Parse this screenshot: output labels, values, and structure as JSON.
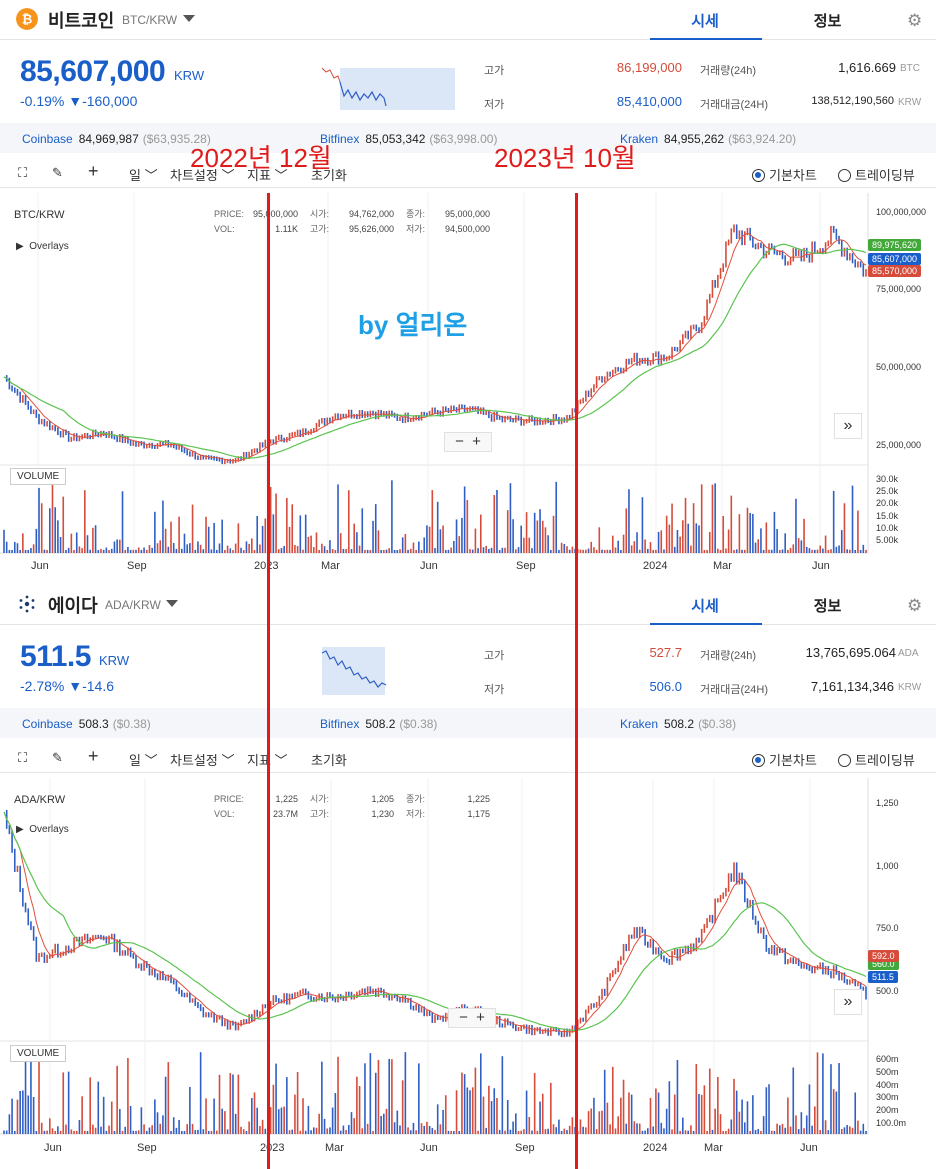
{
  "btc": {
    "name": "비트코인",
    "pair": "BTC/KRW",
    "tab_active": "시세",
    "tab_info": "정보",
    "price": "85,607,000",
    "unit": "KRW",
    "change": "-0.19% ▼-160,000",
    "high_label": "고가",
    "high_value": "86,199,000",
    "low_label": "저가",
    "low_value": "85,410,000",
    "vol24_label": "거래량(24h)",
    "vol24_value": "1,616.669",
    "vol24_unit": "BTC",
    "amt24_label": "거래대금(24H)",
    "amt24_value": "138,512,190,560",
    "amt24_unit": "KRW",
    "exchanges": [
      {
        "name": "Coinbase",
        "value": "84,969,987",
        "usd": "($63,935.28)"
      },
      {
        "name": "Bitfinex",
        "value": "85,053,342",
        "usd": "($63,998.00)"
      },
      {
        "name": "Kraken",
        "value": "84,955,262",
        "usd": "($63,924.20)"
      }
    ],
    "chart_pair": "BTC/KRW",
    "overlays": "Overlays",
    "ohlc": {
      "price_k": "PRICE:",
      "price_v": "95,000,000",
      "vol_k": "VOL:",
      "vol_v": "1.11K",
      "open_k": "시가:",
      "open_v": "94,762,000",
      "high_k": "고가:",
      "high_v": "95,626,000",
      "close_k": "종가:",
      "close_v": "95,000,000",
      "low_k": "저가:",
      "low_v": "94,500,000"
    },
    "yticks": [
      "100,000,000",
      "75,000,000",
      "50,000,000",
      "25,000,000"
    ],
    "vol_ticks": [
      "30.0k",
      "25.0k",
      "20.0k",
      "15.0k",
      "10.0k",
      "5.00k"
    ],
    "tag_ma": "89,975,620",
    "tag_price": "85,607,000",
    "tag_red": "85,570,000"
  },
  "ada": {
    "name": "에이다",
    "pair": "ADA/KRW",
    "tab_active": "시세",
    "tab_info": "정보",
    "price": "511.5",
    "unit": "KRW",
    "change": "-2.78% ▼-14.6",
    "high_label": "고가",
    "high_value": "527.7",
    "low_label": "저가",
    "low_value": "506.0",
    "vol24_label": "거래량(24h)",
    "vol24_value": "13,765,695.064",
    "vol24_unit": "ADA",
    "amt24_label": "거래대금(24H)",
    "amt24_value": "7,161,134,346",
    "amt24_unit": "KRW",
    "exchanges": [
      {
        "name": "Coinbase",
        "value": "508.3",
        "usd": "($0.38)"
      },
      {
        "name": "Bitfinex",
        "value": "508.2",
        "usd": "($0.38)"
      },
      {
        "name": "Kraken",
        "value": "508.2",
        "usd": "($0.38)"
      }
    ],
    "chart_pair": "ADA/KRW",
    "overlays": "Overlays",
    "ohlc": {
      "price_k": "PRICE:",
      "price_v": "1,225",
      "vol_k": "VOL:",
      "vol_v": "23.7M",
      "open_k": "시가:",
      "open_v": "1,205",
      "high_k": "고가:",
      "high_v": "1,230",
      "close_k": "종가:",
      "close_v": "1,225",
      "low_k": "저가:",
      "low_v": "1,175"
    },
    "yticks": [
      "1,250",
      "1,000",
      "750.0",
      "500.0"
    ],
    "vol_ticks": [
      "600m",
      "500m",
      "400m",
      "300m",
      "200m",
      "100.0m"
    ],
    "tag_ma": "592.0",
    "tag_price": "511.5",
    "tag_green": "560.0"
  },
  "toolbar": {
    "period": "일",
    "chart_settings": "차트설정",
    "indicators": "지표",
    "reset": "초기화",
    "basic_chart": "기본차트",
    "tradingview": "트레이딩뷰"
  },
  "volume_label": "VOLUME",
  "x_ticks": [
    "Jun",
    "Sep",
    "2023",
    "Mar",
    "Jun",
    "Sep",
    "2024",
    "Mar",
    "Jun"
  ],
  "annotations": {
    "left": "2022년 12월",
    "right": "2023년 10월",
    "watermark": "by  얼리온"
  },
  "colors": {
    "accent": "#1a5ec9",
    "up": "#d64b3a",
    "down": "#2f5fc4",
    "ma_short": "#e0503c",
    "ma_long": "#5cc451",
    "annotation": "#e01b1b",
    "watermark": "#1e9fe6"
  },
  "icons": {
    "btc": "bitcoin-icon",
    "ada": "cardano-icon",
    "fullscreen": "fullscreen-icon",
    "draw": "pencil-icon",
    "crosshair": "crosshair-icon",
    "settings": "gear-icon"
  },
  "chart_data": [
    {
      "type": "line",
      "title": "BTC/KRW",
      "x": [
        "2022-05",
        "2022-06",
        "2022-07",
        "2022-08",
        "2022-09",
        "2022-10",
        "2022-11",
        "2022-12",
        "2023-01",
        "2023-02",
        "2023-03",
        "2023-04",
        "2023-05",
        "2023-06",
        "2023-07",
        "2023-08",
        "2023-09",
        "2023-10",
        "2023-11",
        "2023-12",
        "2024-01",
        "2024-02",
        "2024-03",
        "2024-04",
        "2024-05",
        "2024-06",
        "2024-07"
      ],
      "series": [
        {
          "values": [
            50000000,
            36000000,
            29000000,
            31000000,
            27000000,
            27000000,
            22000000,
            21500000,
            28000000,
            31000000,
            37000000,
            38000000,
            36000000,
            38000000,
            39000000,
            35500000,
            35000000,
            36000000,
            50000000,
            56000000,
            57000000,
            68000000,
            100000000,
            93000000,
            90000000,
            98000000,
            85600000
          ]
        }
      ],
      "ylim": [
        20000000,
        110000000
      ],
      "yticks": [
        25000000,
        50000000,
        75000000,
        100000000
      ]
    },
    {
      "type": "line",
      "title": "ADA/KRW",
      "x": [
        "2022-05",
        "2022-06",
        "2022-07",
        "2022-08",
        "2022-09",
        "2022-10",
        "2022-11",
        "2022-12",
        "2023-01",
        "2023-02",
        "2023-03",
        "2023-04",
        "2023-05",
        "2023-06",
        "2023-07",
        "2023-08",
        "2023-09",
        "2023-10",
        "2023-11",
        "2023-12",
        "2024-01",
        "2024-02",
        "2024-03",
        "2024-04",
        "2024-05",
        "2024-06",
        "2024-07"
      ],
      "series": [
        {
          "values": [
            1200,
            650,
            700,
            740,
            640,
            560,
            440,
            380,
            480,
            510,
            500,
            530,
            500,
            410,
            460,
            400,
            370,
            360,
            500,
            760,
            650,
            720,
            1000,
            700,
            620,
            600,
            511.5
          ]
        }
      ],
      "ylim": [
        330,
        1320
      ],
      "yticks": [
        500,
        750,
        1000,
        1250
      ]
    }
  ]
}
